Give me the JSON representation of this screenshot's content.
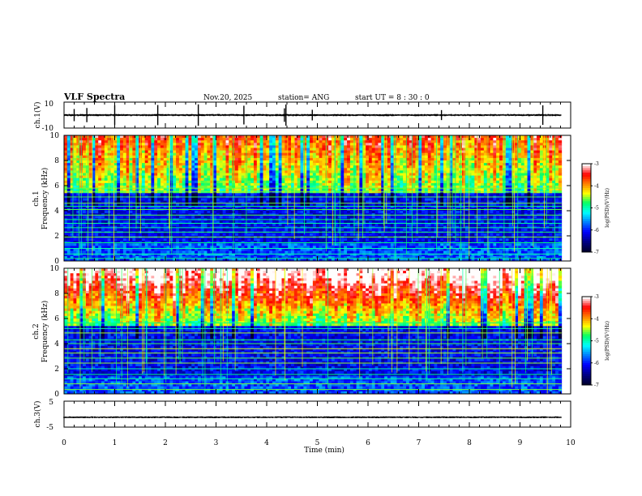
{
  "header": {
    "title": "VLF Spectra",
    "date": "Nov.20, 2025",
    "station": "station= ANG",
    "start": "start  UT =   8  : 30 : 0"
  },
  "chart_data": [
    {
      "type": "line",
      "name": "ch1-waveform",
      "ylabel": "ch.1(V)",
      "ylim": [
        -10,
        10
      ],
      "yticks": [
        "10",
        "-10"
      ],
      "baseline": 0,
      "spikes_min": [
        0.2,
        0.45,
        1.0,
        1.85,
        2.65,
        3.55,
        4.35,
        4.38,
        4.9,
        7.45,
        9.45
      ]
    },
    {
      "type": "heatmap",
      "name": "ch1-spectrogram",
      "ylabel": "ch.1\nFrequency (kHz)",
      "ylim": [
        0,
        10
      ],
      "yticks": [
        "0",
        "2",
        "4",
        "6",
        "8",
        "10"
      ],
      "colorbar": {
        "label": "log(PSD)(V²/Hz)",
        "range": [
          -7,
          -3
        ],
        "ticks": [
          "-3",
          "-4",
          "-5",
          "-6",
          "-7"
        ]
      },
      "lines_khz": [
        0.2,
        0.55,
        1.0,
        1.45,
        1.9,
        2.3,
        2.65,
        3.0,
        3.3,
        3.65,
        4.1,
        4.35,
        4.6,
        5.1,
        5.5,
        5.8
      ]
    },
    {
      "type": "heatmap",
      "name": "ch2-spectrogram",
      "ylabel": "ch.2\nFrequency (kHz)",
      "ylim": [
        0,
        10
      ],
      "yticks": [
        "0",
        "2",
        "4",
        "6",
        "8",
        "10"
      ],
      "colorbar": {
        "label": "log(PSD)(V²/Hz)",
        "range": [
          -7,
          -3
        ],
        "ticks": [
          "-3",
          "-4",
          "-5",
          "-6",
          "-7"
        ]
      },
      "lines_khz": [
        0.35,
        0.8,
        1.2,
        1.55,
        2.0,
        2.45,
        2.85,
        3.25,
        3.6,
        4.0,
        4.3,
        4.85,
        5.2,
        5.65
      ]
    },
    {
      "type": "line",
      "name": "ch3-waveform",
      "ylabel": "ch.3(V)",
      "ylim": [
        -5,
        5
      ],
      "yticks": [
        "5",
        "-5"
      ],
      "baseline": -1.2
    }
  ],
  "xaxis": {
    "label": "Time (min)",
    "range": [
      0,
      10
    ],
    "ticks": [
      "0",
      "1",
      "2",
      "3",
      "4",
      "5",
      "6",
      "7",
      "8",
      "9",
      "10"
    ],
    "data_end": 9.82
  },
  "colors": {
    "background": "#ffffff",
    "axis": "#000000",
    "colormap": [
      "#000033",
      "#00008b",
      "#0000ff",
      "#0080ff",
      "#00ffff",
      "#00ff66",
      "#ffff00",
      "#ff8000",
      "#ff0000",
      "#ffffff"
    ]
  }
}
